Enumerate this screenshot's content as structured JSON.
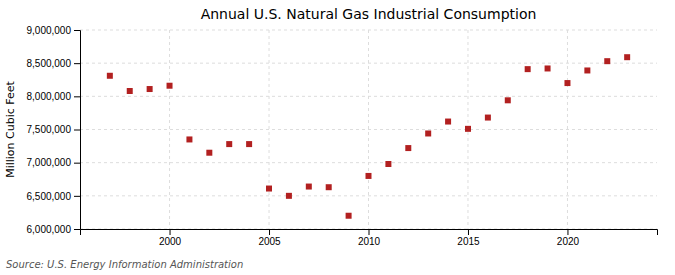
{
  "chart_data": {
    "type": "scatter",
    "title": "Annual U.S. Natural Gas Industrial Consumption",
    "ylabel": "Million Cubic Feet",
    "source": "Source: U.S. Energy Information Administration",
    "x": [
      1997,
      1998,
      1999,
      2000,
      2001,
      2002,
      2003,
      2004,
      2005,
      2006,
      2007,
      2008,
      2009,
      2010,
      2011,
      2012,
      2013,
      2014,
      2015,
      2016,
      2017,
      2018,
      2019,
      2020,
      2021,
      2022,
      2023
    ],
    "values": [
      8310000,
      8080000,
      8110000,
      8160000,
      7350000,
      7150000,
      7280000,
      7280000,
      6610000,
      6500000,
      6640000,
      6630000,
      6200000,
      6800000,
      6980000,
      7220000,
      7440000,
      7620000,
      7510000,
      7680000,
      7940000,
      8410000,
      8420000,
      8200000,
      8390000,
      8530000,
      8590000
    ],
    "color": "#b22020",
    "marker": "square",
    "xlim": [
      1995.5,
      2024.5
    ],
    "xticks": [
      2000,
      2005,
      2010,
      2015,
      2020
    ],
    "ylim": [
      6000000,
      9000000
    ],
    "yticks": [
      {
        "value": 6000000,
        "label": "6,000,000"
      },
      {
        "value": 6500000,
        "label": "6,500,000"
      },
      {
        "value": 7000000,
        "label": "7,000,000"
      },
      {
        "value": 7500000,
        "label": "7,500,000"
      },
      {
        "value": 8000000,
        "label": "8,000,000"
      },
      {
        "value": 8500000,
        "label": "8,500,000"
      },
      {
        "value": 9000000,
        "label": "9,000,000"
      }
    ],
    "grid": true
  }
}
